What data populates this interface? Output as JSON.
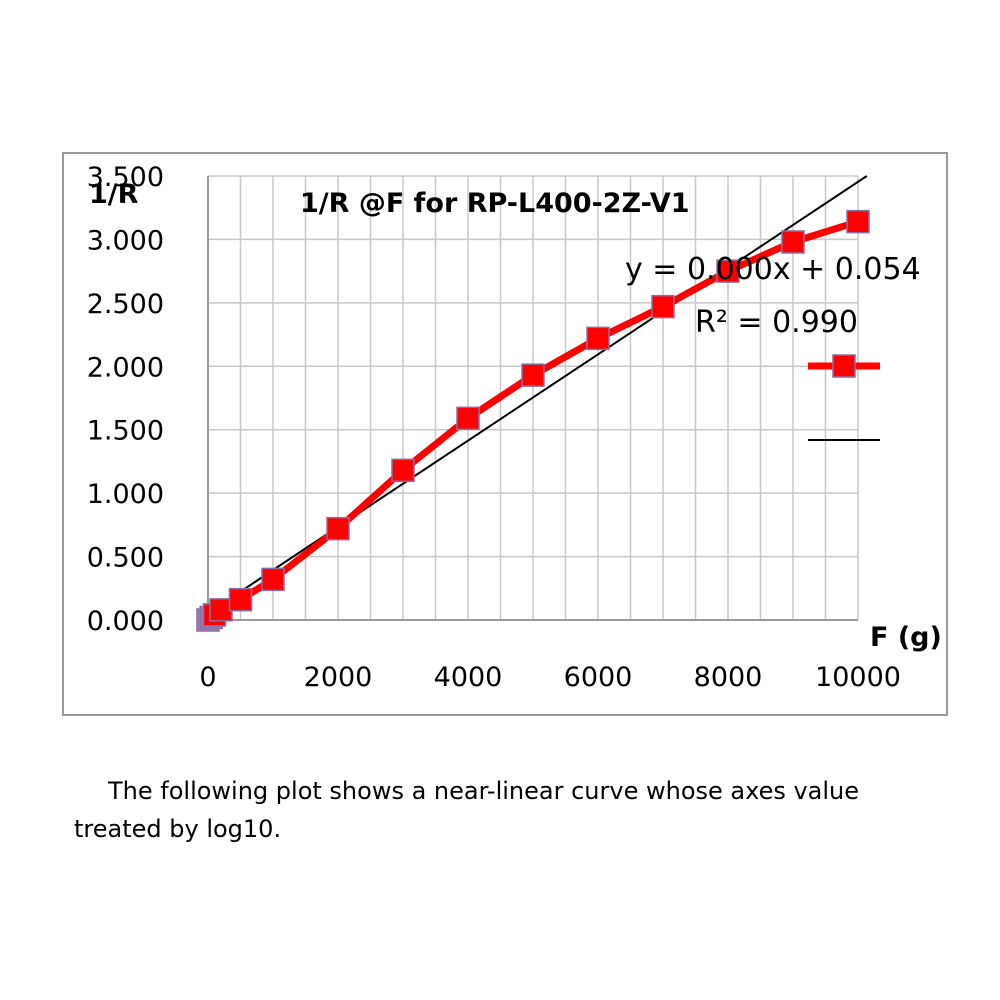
{
  "chart_data": {
    "type": "line",
    "title": "1/R @F for RP-L400-2Z-V1",
    "xlabel": "F (g)",
    "ylabel": "1/R",
    "xlim": [
      0,
      10000
    ],
    "ylim": [
      0,
      3.5
    ],
    "x_ticks": [
      0,
      2000,
      4000,
      6000,
      8000,
      10000
    ],
    "y_ticks": [
      "0.000",
      "0.500",
      "1.000",
      "1.500",
      "2.000",
      "2.500",
      "3.000",
      "3.500"
    ],
    "grid": true,
    "series": [
      {
        "color": "#ff0000",
        "marker_color": "#ff0000",
        "x": [
          0,
          50,
          100,
          200,
          500,
          1000,
          2000,
          3000,
          4000,
          5000,
          6000,
          7000,
          8000,
          9000,
          10000
        ],
        "y": [
          0.0,
          0.02,
          0.04,
          0.08,
          0.16,
          0.32,
          0.72,
          1.18,
          1.59,
          1.93,
          2.22,
          2.47,
          2.75,
          2.98,
          3.14
        ]
      }
    ],
    "trendline": {
      "type": "linear",
      "color": "#000000",
      "slope": 0.00034,
      "intercept": 0.054,
      "equation": "y = 0.000x + 0.054",
      "r_squared": "R² = 0.990"
    },
    "legend": {
      "placement": "right"
    }
  },
  "caption": "The following plot shows a near-linear curve whose axes value treated by log10."
}
